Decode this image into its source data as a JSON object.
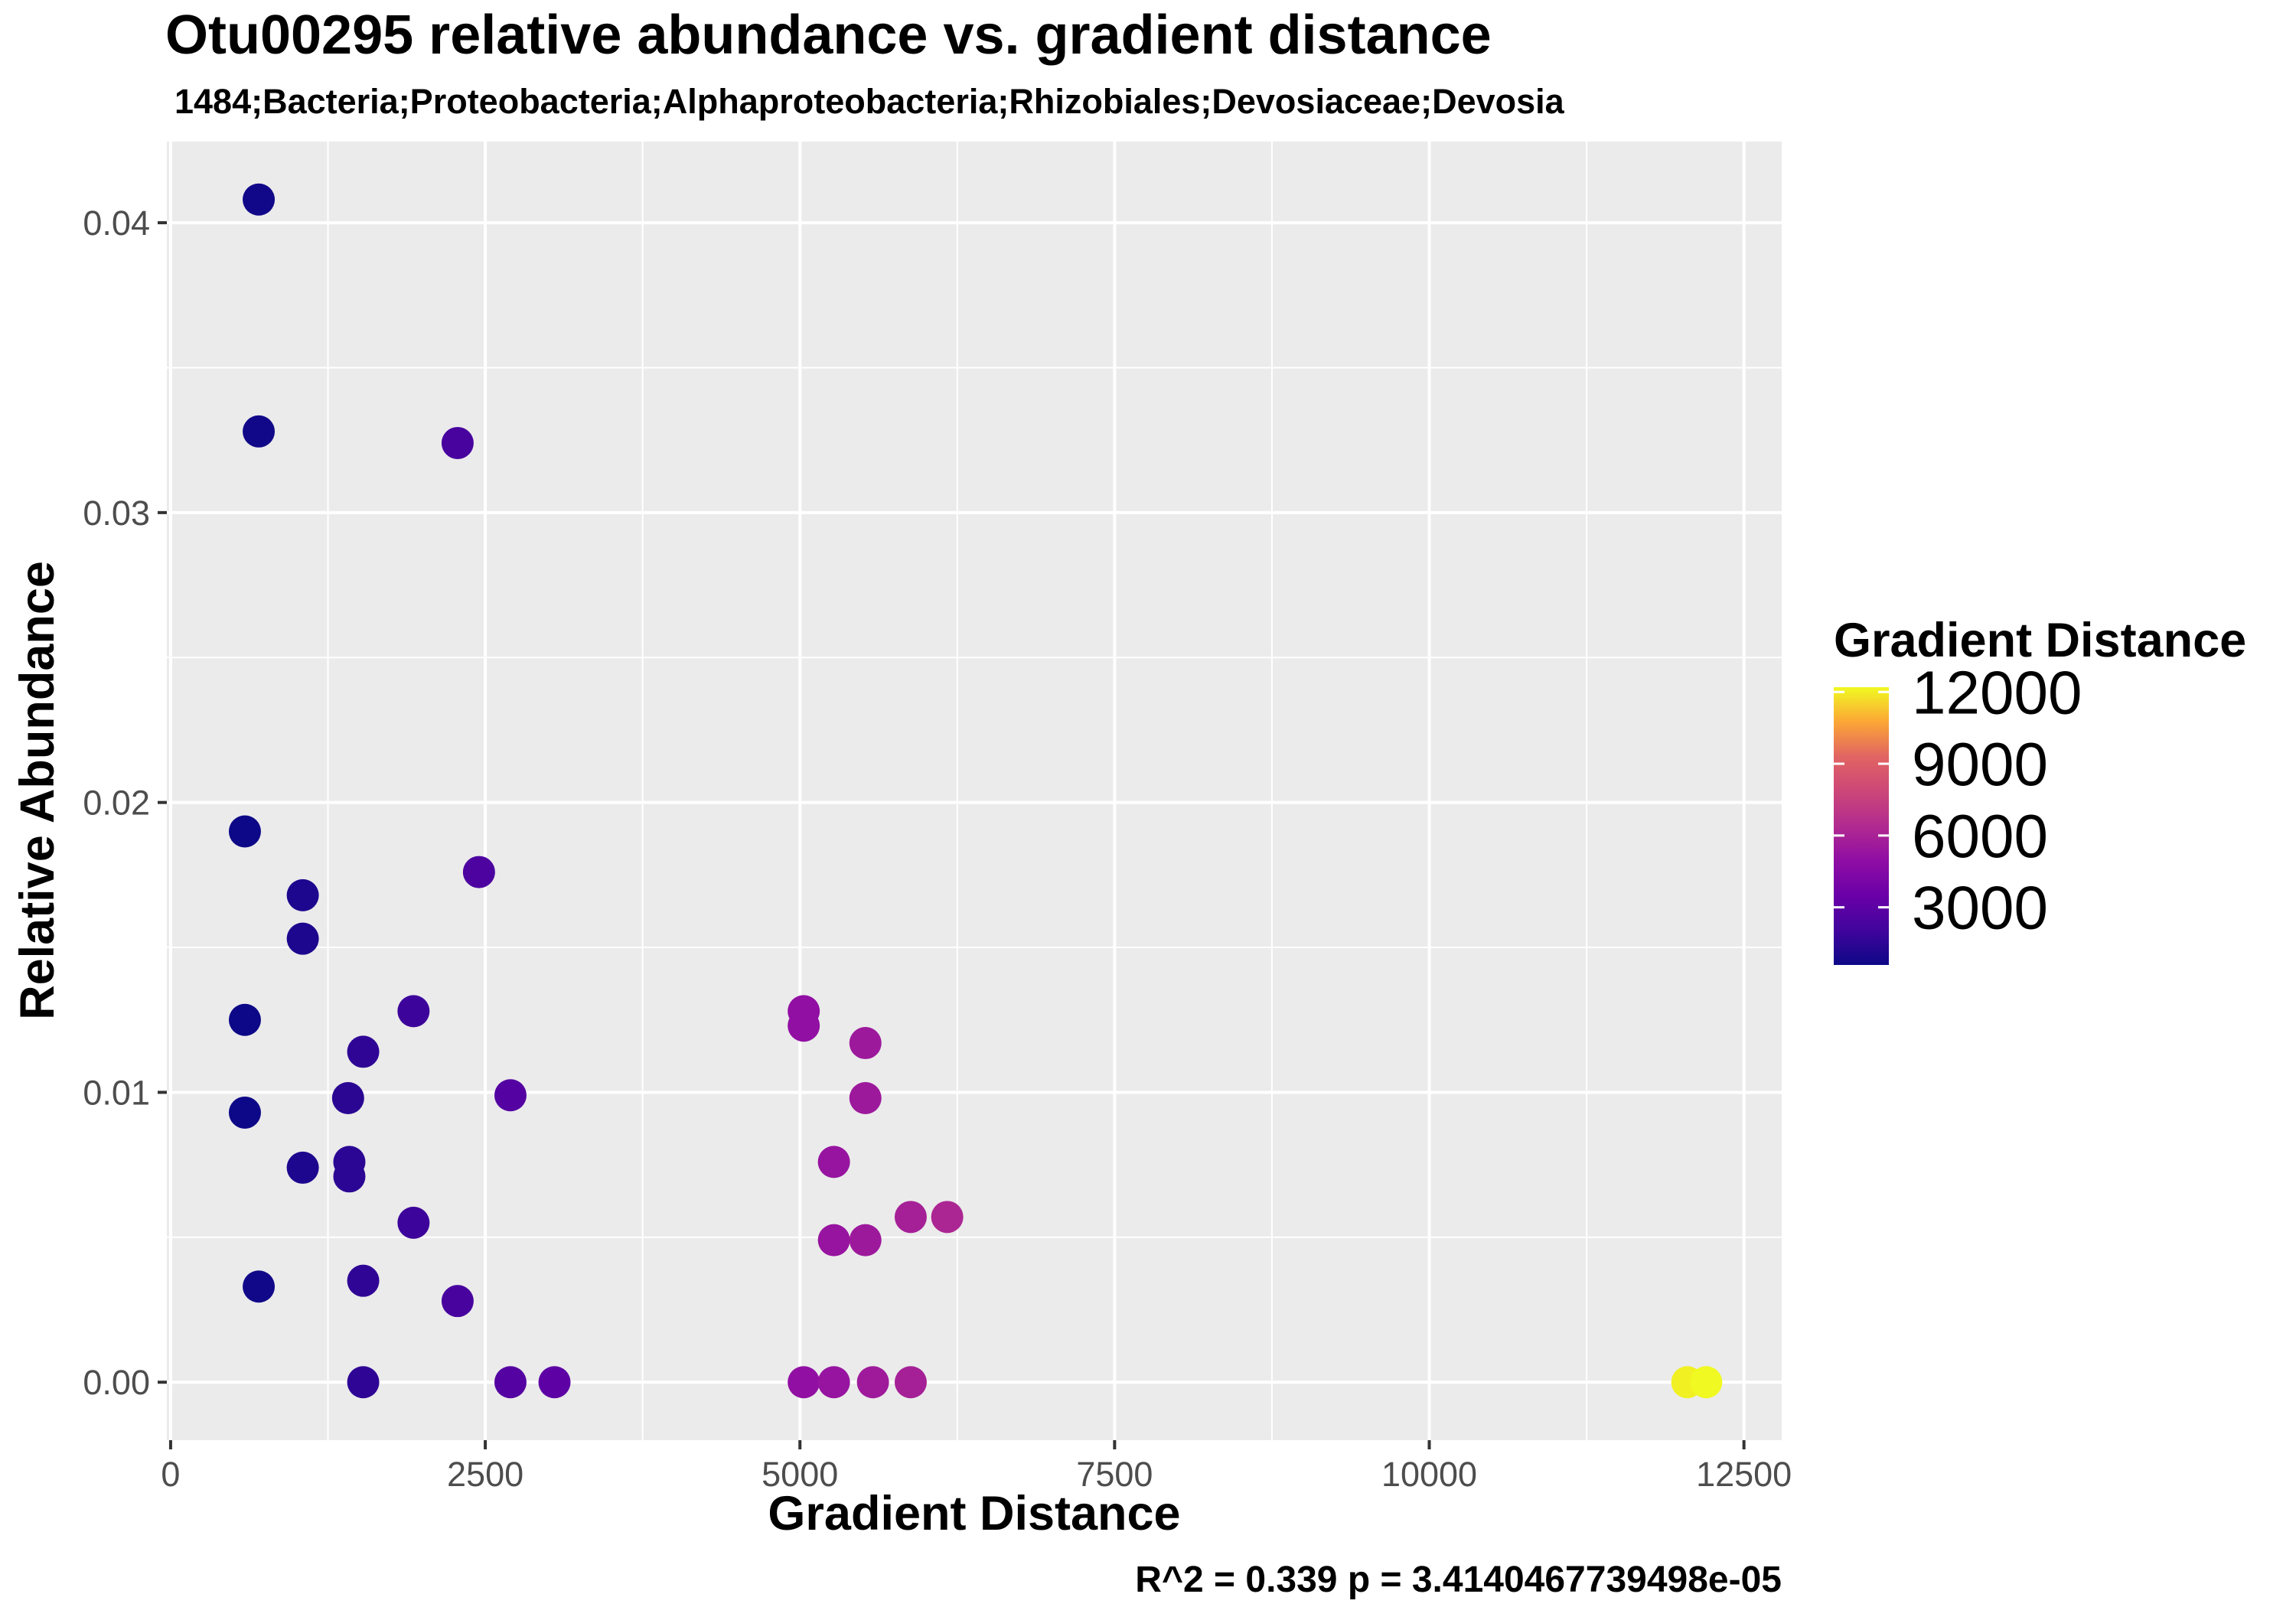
{
  "chart_data": {
    "type": "scatter",
    "title": "Otu00295 relative abundance vs. gradient distance",
    "subtitle": "1484;Bacteria;Proteobacteria;Alphaproteobacteria;Rhizobiales;Devosiaceae;Devosia",
    "xlabel": "Gradient Distance",
    "ylabel": "Relative Abundance",
    "annotation": "R^2 =  0.339 p = 3.4140467739498e-05",
    "xlim": [
      -30,
      12800
    ],
    "ylim": [
      -0.002,
      0.0428
    ],
    "x_ticks": [
      0,
      2500,
      5000,
      7500,
      10000,
      12500
    ],
    "x_tick_labels": [
      "0",
      "2500",
      "5000",
      "7500",
      "10000",
      "12500"
    ],
    "y_ticks": [
      0,
      0.01,
      0.02,
      0.03,
      0.04
    ],
    "y_tick_labels": [
      "0.00",
      "0.01",
      "0.02",
      "0.03",
      "0.04"
    ],
    "grid": true,
    "legend": {
      "title": "Gradient Distance",
      "position": "right",
      "ticks": [
        3000,
        6000,
        9000,
        12000
      ],
      "tick_labels": [
        "3000",
        "6000",
        "9000",
        "12000"
      ],
      "range": [
        590,
        12200
      ]
    },
    "colormap": "plasma",
    "points": [
      {
        "x": 700,
        "y": 0.0408
      },
      {
        "x": 700,
        "y": 0.0328
      },
      {
        "x": 2280,
        "y": 0.0324
      },
      {
        "x": 590,
        "y": 0.019
      },
      {
        "x": 2450,
        "y": 0.0176
      },
      {
        "x": 1050,
        "y": 0.0168
      },
      {
        "x": 1050,
        "y": 0.0153
      },
      {
        "x": 590,
        "y": 0.0125
      },
      {
        "x": 1930,
        "y": 0.0128
      },
      {
        "x": 1530,
        "y": 0.0114
      },
      {
        "x": 1410,
        "y": 0.0098
      },
      {
        "x": 2700,
        "y": 0.0099
      },
      {
        "x": 590,
        "y": 0.0093
      },
      {
        "x": 1050,
        "y": 0.0074
      },
      {
        "x": 1420,
        "y": 0.0076
      },
      {
        "x": 1420,
        "y": 0.0071
      },
      {
        "x": 1930,
        "y": 0.0055
      },
      {
        "x": 1530,
        "y": 0.0035
      },
      {
        "x": 700,
        "y": 0.0033
      },
      {
        "x": 2280,
        "y": 0.0028
      },
      {
        "x": 1530,
        "y": 0.0
      },
      {
        "x": 2700,
        "y": 0.0
      },
      {
        "x": 3050,
        "y": 0.0
      },
      {
        "x": 5030,
        "y": 0.0128
      },
      {
        "x": 5030,
        "y": 0.0123
      },
      {
        "x": 5520,
        "y": 0.0117
      },
      {
        "x": 5520,
        "y": 0.0098
      },
      {
        "x": 5270,
        "y": 0.0076
      },
      {
        "x": 5880,
        "y": 0.0057
      },
      {
        "x": 6170,
        "y": 0.0057
      },
      {
        "x": 5270,
        "y": 0.0049
      },
      {
        "x": 5520,
        "y": 0.0049
      },
      {
        "x": 5030,
        "y": 0.0
      },
      {
        "x": 5270,
        "y": 0.0
      },
      {
        "x": 5580,
        "y": 0.0
      },
      {
        "x": 5880,
        "y": 0.0
      },
      {
        "x": 12050,
        "y": 0.0
      },
      {
        "x": 12200,
        "y": 0.0
      }
    ]
  },
  "colors": {
    "panel_background": "#ebebeb",
    "gridline": "#ffffff",
    "axis_text": "#4d4d4d",
    "tick": "#333333"
  }
}
